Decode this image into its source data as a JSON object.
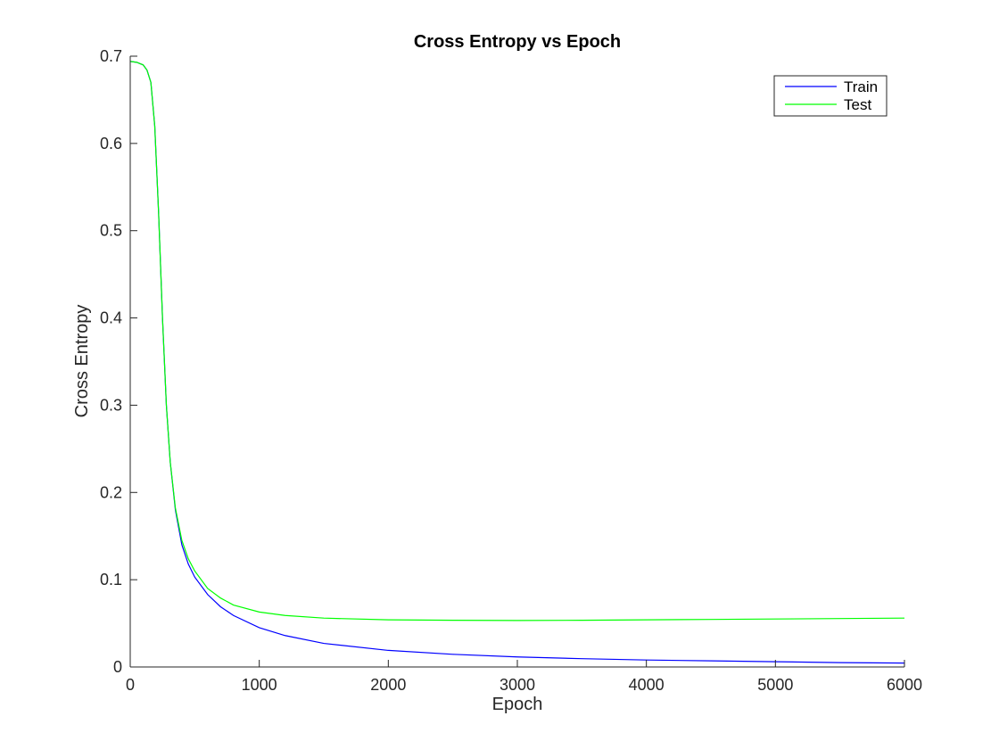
{
  "chart_data": {
    "type": "line",
    "title": "Cross Entropy vs Epoch",
    "xlabel": "Epoch",
    "ylabel": "Cross Entropy",
    "xlim": [
      0,
      6000
    ],
    "ylim": [
      0,
      0.7
    ],
    "xticks": [
      0,
      1000,
      2000,
      3000,
      4000,
      5000,
      6000
    ],
    "yticks": [
      0,
      0.1,
      0.2,
      0.3,
      0.4,
      0.5,
      0.6,
      0.7
    ],
    "xtick_labels": [
      "0",
      "1000",
      "2000",
      "3000",
      "4000",
      "5000",
      "6000"
    ],
    "ytick_labels": [
      "0",
      "0.1",
      "0.2",
      "0.3",
      "0.4",
      "0.5",
      "0.6",
      "0.7"
    ],
    "grid": false,
    "legend_position": "top-right",
    "series": [
      {
        "name": "Train",
        "color": "#0000ff",
        "x": [
          0,
          50,
          100,
          130,
          160,
          190,
          220,
          250,
          280,
          310,
          350,
          400,
          450,
          500,
          600,
          700,
          800,
          1000,
          1200,
          1500,
          2000,
          2500,
          3000,
          3500,
          4000,
          4500,
          5000,
          5500,
          6000
        ],
        "y": [
          0.694,
          0.693,
          0.69,
          0.684,
          0.67,
          0.62,
          0.52,
          0.4,
          0.3,
          0.235,
          0.18,
          0.14,
          0.118,
          0.103,
          0.083,
          0.069,
          0.059,
          0.045,
          0.036,
          0.027,
          0.019,
          0.0145,
          0.0115,
          0.0095,
          0.008,
          0.007,
          0.006,
          0.005,
          0.0045
        ]
      },
      {
        "name": "Test",
        "color": "#00ff00",
        "x": [
          0,
          50,
          100,
          130,
          160,
          190,
          220,
          250,
          280,
          310,
          350,
          400,
          450,
          500,
          600,
          700,
          800,
          1000,
          1200,
          1500,
          2000,
          2500,
          3000,
          3500,
          4000,
          4500,
          5000,
          5500,
          6000
        ],
        "y": [
          0.694,
          0.693,
          0.69,
          0.684,
          0.67,
          0.62,
          0.52,
          0.4,
          0.3,
          0.235,
          0.182,
          0.145,
          0.124,
          0.11,
          0.09,
          0.079,
          0.071,
          0.063,
          0.059,
          0.056,
          0.054,
          0.0535,
          0.0533,
          0.0535,
          0.054,
          0.0545,
          0.055,
          0.0555,
          0.056
        ]
      }
    ]
  }
}
